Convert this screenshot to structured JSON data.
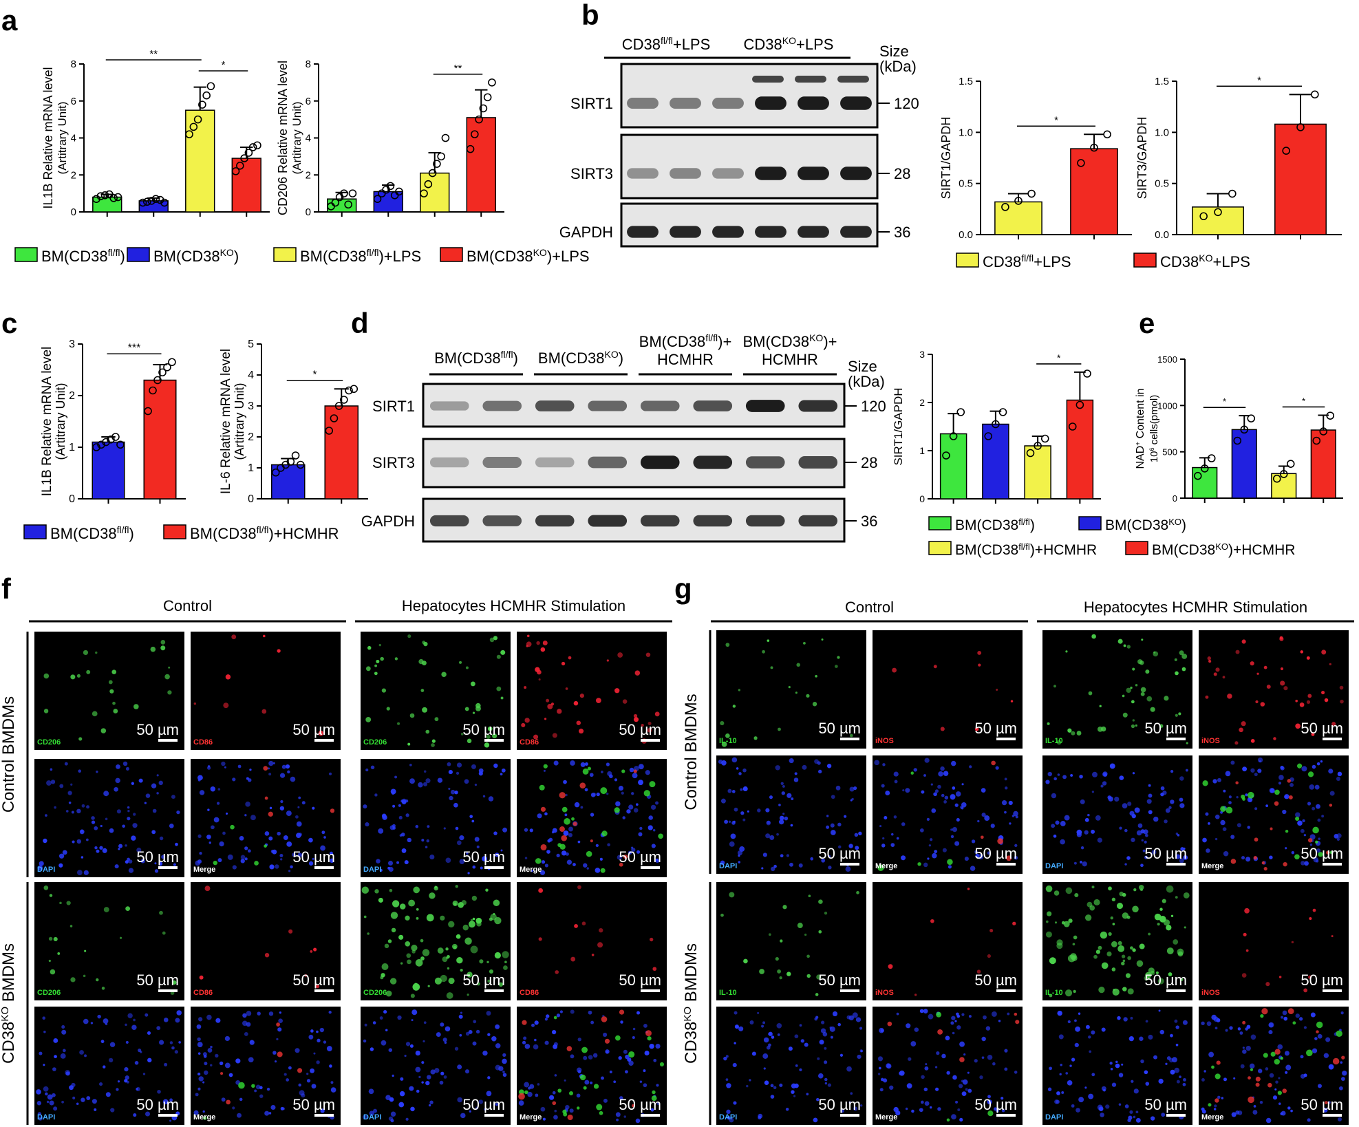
{
  "colors": {
    "green": "#3ee63e",
    "blue": "#2121e0",
    "yellow": "#f2f24a",
    "red": "#f22a22",
    "black": "#000000",
    "blot_bg": "#e6e6e6"
  },
  "panel_letters": [
    "a",
    "b",
    "c",
    "d",
    "e",
    "f",
    "g"
  ],
  "legends": {
    "a": [
      "BM(CD38fl/fl)",
      "BM(CD38KO)",
      "BM(CD38fl/fl)+LPS",
      "BM(CD38KO)+LPS"
    ],
    "b": [
      "CD38fl/fl+LPS",
      "CD38KO+LPS"
    ],
    "c": [
      "BM(CD38fl/fl)",
      "BM(CD38fl/fl)+HCMHR"
    ],
    "d": [
      "BM(CD38fl/fl)",
      "BM(CD38KO)",
      "BM(CD38fl/fl)+HCMHR",
      "BM(CD38KO)+HCMHR"
    ]
  },
  "blots": {
    "b": {
      "group_labels": [
        "CD38fl/fl+LPS",
        "CD38KO+LPS"
      ],
      "size_header": [
        "Size",
        "(kDa)"
      ],
      "proteins": [
        "SIRT1",
        "SIRT3",
        "GAPDH"
      ],
      "sizes": [
        "120",
        "28",
        "36"
      ],
      "intensity": [
        [
          0.5,
          0.5,
          0.5,
          0.95,
          0.95,
          0.95
        ],
        [
          0.4,
          0.45,
          0.4,
          0.95,
          0.95,
          0.95
        ],
        [
          0.9,
          0.9,
          0.9,
          0.9,
          0.9,
          0.9
        ]
      ]
    },
    "d": {
      "group_labels": [
        [
          "BM(CD38fl/fl)"
        ],
        [
          "BM(CD38KO)"
        ],
        [
          "BM(CD38fl/fl)+",
          "HCMHR"
        ],
        [
          "BM(CD38KO)+",
          "HCMHR"
        ]
      ],
      "size_header": [
        "Size",
        "(kDa)"
      ],
      "proteins": [
        "SIRT1",
        "SIRT3",
        "GAPDH"
      ],
      "sizes": [
        "120",
        "28",
        "36"
      ],
      "intensity": [
        [
          0.35,
          0.55,
          0.7,
          0.6,
          0.6,
          0.7,
          0.95,
          0.85
        ],
        [
          0.3,
          0.5,
          0.3,
          0.6,
          0.95,
          0.9,
          0.7,
          0.75
        ],
        [
          0.75,
          0.7,
          0.8,
          0.85,
          0.8,
          0.8,
          0.8,
          0.8
        ]
      ]
    }
  },
  "micro": {
    "f": {
      "header_left": "Control",
      "header_right": "Hepatocytes HCMHR Stimulation",
      "row_groups": [
        "Control BMDMs",
        "CD38KO BMDMs"
      ],
      "channel_rows": [
        [
          "CD206",
          "CD86"
        ],
        [
          "DAPI",
          "Merge"
        ]
      ],
      "scale": "50 µm"
    },
    "g": {
      "header_left": "Control",
      "header_right": "Hepatocytes HCMHR Stimulation",
      "row_groups": [
        "Control BMDMs",
        "CD38KO BMDMs"
      ],
      "channel_rows": [
        [
          "IL-10",
          "iNOS"
        ],
        [
          "DAPI",
          "Merge"
        ]
      ],
      "scale": "50 µm"
    }
  },
  "chart_data": [
    {
      "id": "a1",
      "type": "bar",
      "categories": [
        "BM(CD38fl/fl)",
        "BM(CD38KO)",
        "BM(CD38fl/fl)+LPS",
        "BM(CD38KO)+LPS"
      ],
      "values": [
        0.8,
        0.6,
        5.5,
        2.9
      ],
      "errors": [
        0.15,
        0.15,
        1.25,
        0.6
      ],
      "points": [
        [
          0.7,
          0.85,
          0.9,
          0.95,
          0.75,
          0.8
        ],
        [
          0.5,
          0.55,
          0.6,
          0.7,
          0.65,
          0.5
        ],
        [
          4.2,
          4.6,
          5.0,
          5.8,
          6.3,
          6.8
        ],
        [
          2.2,
          2.5,
          2.9,
          3.2,
          3.5,
          3.6
        ]
      ],
      "ylabel": "IL1B Relative mRNA level",
      "ylabel2": "(Artitrary Unit)",
      "ylim": [
        0,
        8
      ],
      "yticks": [
        0,
        2,
        4,
        6,
        8
      ],
      "sig": [
        {
          "from": 0,
          "to": 2,
          "label": "**"
        },
        {
          "from": 2,
          "to": 3,
          "label": "*"
        }
      ]
    },
    {
      "id": "a2",
      "type": "bar",
      "categories": [
        "BM(CD38fl/fl)",
        "BM(CD38KO)",
        "BM(CD38fl/fl)+LPS",
        "BM(CD38KO)+LPS"
      ],
      "values": [
        0.7,
        1.1,
        2.1,
        5.1
      ],
      "errors": [
        0.35,
        0.35,
        1.1,
        1.5
      ],
      "points": [
        [
          0.3,
          0.5,
          0.8,
          1.0,
          0.4,
          1.0
        ],
        [
          0.7,
          1.0,
          1.2,
          1.4,
          0.9,
          1.1
        ],
        [
          1.0,
          1.5,
          2.1,
          2.6,
          3.0,
          4.0
        ],
        [
          3.4,
          4.2,
          5.0,
          5.6,
          6.2,
          7.0
        ]
      ],
      "ylabel": "CD206 Relative mRNA level",
      "ylabel2": "(Artitrary Unit)",
      "ylim": [
        0,
        8
      ],
      "yticks": [
        0,
        2,
        4,
        6,
        8
      ],
      "sig": [
        {
          "from": 2,
          "to": 3,
          "label": "**"
        }
      ]
    },
    {
      "id": "b1",
      "type": "bar",
      "categories": [
        "CD38fl/fl+LPS",
        "CD38KO+LPS"
      ],
      "values": [
        0.32,
        0.84
      ],
      "errors": [
        0.08,
        0.14
      ],
      "points": [
        [
          0.27,
          0.33,
          0.4
        ],
        [
          0.7,
          0.85,
          0.98
        ]
      ],
      "ylabel": "SIRT1/GAPDH",
      "ylabel2": "",
      "ylim": [
        0,
        1.5
      ],
      "yticks": [
        0.0,
        0.5,
        1.0,
        1.5
      ],
      "sig": [
        {
          "from": 0,
          "to": 1,
          "label": "*"
        }
      ]
    },
    {
      "id": "b2",
      "type": "bar",
      "categories": [
        "CD38fl/fl+LPS",
        "CD38KO+LPS"
      ],
      "values": [
        0.27,
        1.08
      ],
      "errors": [
        0.13,
        0.29
      ],
      "points": [
        [
          0.18,
          0.22,
          0.4
        ],
        [
          0.82,
          1.05,
          1.37
        ]
      ],
      "ylabel": "SIRT3/GAPDH",
      "ylabel2": "",
      "ylim": [
        0,
        1.5
      ],
      "yticks": [
        0.0,
        0.5,
        1.0,
        1.5
      ],
      "sig": [
        {
          "from": 0,
          "to": 1,
          "label": "*"
        }
      ]
    },
    {
      "id": "c1",
      "type": "bar",
      "categories": [
        "BM(CD38fl/fl)",
        "BM(CD38fl/fl)+HCMHR"
      ],
      "values": [
        1.1,
        2.3
      ],
      "errors": [
        0.1,
        0.3
      ],
      "points": [
        [
          1.0,
          1.05,
          1.1,
          1.15,
          1.2,
          1.05
        ],
        [
          1.7,
          2.1,
          2.3,
          2.45,
          2.55,
          2.65
        ]
      ],
      "ylabel": "IL1B Relative mRNA level",
      "ylabel2": "(Artitrary Unit)",
      "ylim": [
        0,
        3
      ],
      "yticks": [
        0,
        1,
        2,
        3
      ],
      "sig": [
        {
          "from": 0,
          "to": 1,
          "label": "***"
        }
      ]
    },
    {
      "id": "c2",
      "type": "bar",
      "categories": [
        "BM(CD38fl/fl)",
        "BM(CD38fl/fl)+HCMHR"
      ],
      "values": [
        1.1,
        3.0
      ],
      "errors": [
        0.2,
        0.55
      ],
      "points": [
        [
          0.85,
          1.0,
          1.1,
          1.2,
          1.4,
          1.1
        ],
        [
          2.2,
          2.6,
          3.0,
          3.2,
          3.5,
          3.55
        ]
      ],
      "ylabel": "IL-6 Relative mRNA level",
      "ylabel2": "(Artitrary Unit)",
      "ylim": [
        0,
        5
      ],
      "yticks": [
        0,
        1,
        2,
        3,
        4,
        5
      ],
      "sig": [
        {
          "from": 0,
          "to": 1,
          "label": "*"
        }
      ]
    },
    {
      "id": "d1",
      "type": "bar",
      "categories": [
        "BM(CD38fl/fl)",
        "BM(CD38KO)",
        "BM(CD38fl/fl)+HCMHR",
        "BM(CD38KO)+HCMHR"
      ],
      "values": [
        1.35,
        1.55,
        1.1,
        2.05
      ],
      "errors": [
        0.42,
        0.27,
        0.2,
        0.58
      ],
      "points": [
        [
          0.9,
          1.3,
          1.8
        ],
        [
          1.3,
          1.55,
          1.8
        ],
        [
          0.95,
          1.1,
          1.25
        ],
        [
          1.5,
          1.95,
          2.6
        ]
      ],
      "ylabel": "SIRT1/GAPDH",
      "ylabel2": "",
      "ylim": [
        0,
        3
      ],
      "yticks": [
        0,
        1,
        2,
        3
      ],
      "sig": [
        {
          "from": 2,
          "to": 3,
          "label": "*"
        }
      ]
    },
    {
      "id": "e1",
      "type": "bar",
      "categories": [
        "BM(CD38fl/fl)",
        "BM(CD38KO)",
        "BM(CD38fl/fl)+HCMHR",
        "BM(CD38KO)+HCMHR"
      ],
      "values": [
        330,
        740,
        265,
        735
      ],
      "errors": [
        105,
        150,
        80,
        160
      ],
      "points": [
        [
          240,
          320,
          430
        ],
        [
          620,
          740,
          860
        ],
        [
          210,
          260,
          370
        ],
        [
          620,
          720,
          890
        ]
      ],
      "ylabel": "NAD+ Content in",
      "ylabel2": "10^6 cells(pmol)",
      "ylim": [
        0,
        1500
      ],
      "yticks": [
        0,
        500,
        1000,
        1500
      ],
      "sig": [
        {
          "from": 0,
          "to": 1,
          "label": "*"
        },
        {
          "from": 2,
          "to": 3,
          "label": "*"
        }
      ]
    }
  ]
}
